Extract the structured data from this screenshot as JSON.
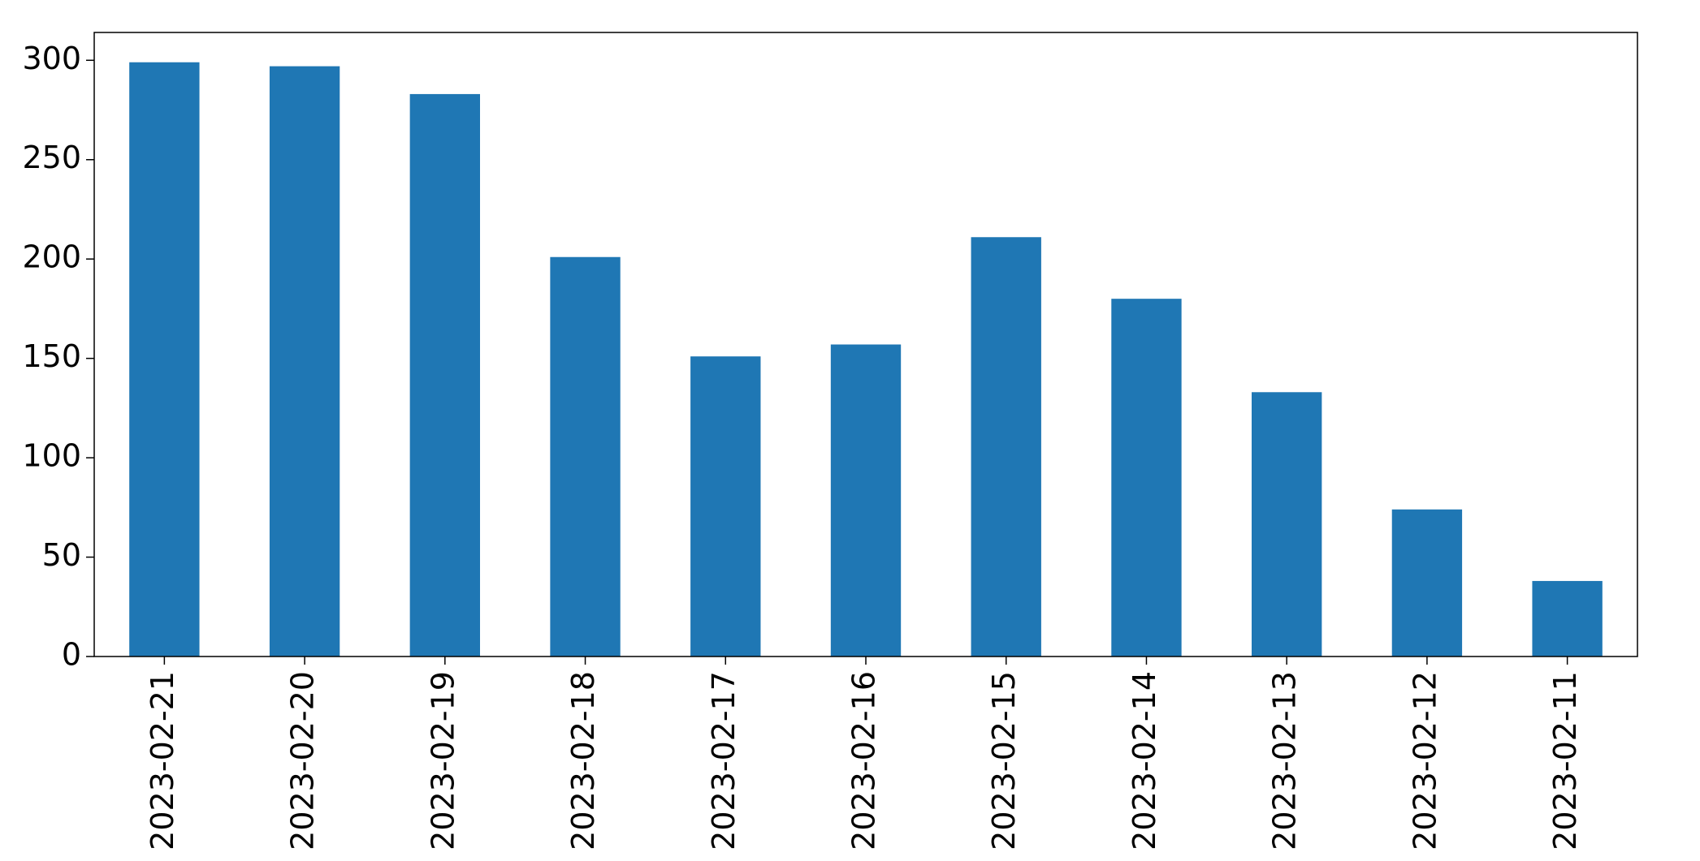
{
  "chart_data": {
    "type": "bar",
    "categories": [
      "2023-02-21",
      "2023-02-20",
      "2023-02-19",
      "2023-02-18",
      "2023-02-17",
      "2023-02-16",
      "2023-02-15",
      "2023-02-14",
      "2023-02-13",
      "2023-02-12",
      "2023-02-11"
    ],
    "values": [
      299,
      297,
      283,
      201,
      151,
      157,
      211,
      180,
      133,
      74,
      38
    ],
    "color": "#1f77b4",
    "ylim": [
      0,
      314
    ],
    "yticks": [
      0,
      50,
      100,
      150,
      200,
      250,
      300
    ],
    "grid": false
  }
}
